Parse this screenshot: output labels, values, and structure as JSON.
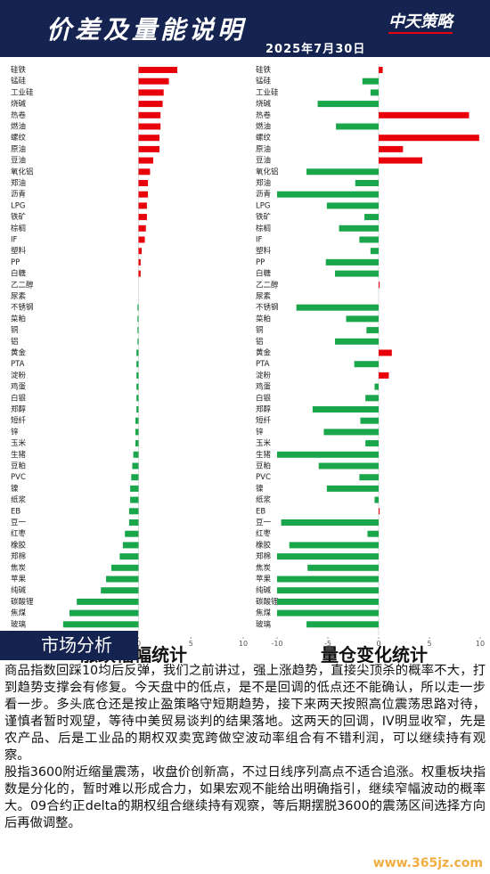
{
  "header": {
    "title": "价差及量能说明",
    "date": "2025年7月30日",
    "logo": "中天策略"
  },
  "chart_data": [
    {
      "type": "bar",
      "orientation": "horizontal",
      "title": "涨跌幅幅统计",
      "categories": [
        "硅铁",
        "锰硅",
        "工业硅",
        "烧碱",
        "热卷",
        "燃油",
        "螺纹",
        "原油",
        "豆油",
        "氧化铝",
        "郑油",
        "沥青",
        "LPG",
        "铁矿",
        "棕榈",
        "IF",
        "塑料",
        "PP",
        "白糖",
        "乙二醇",
        "尿素",
        "不锈钢",
        "菜粕",
        "铜",
        "铝",
        "黄金",
        "PTA",
        "淀粉",
        "鸡蛋",
        "白银",
        "郑醇",
        "短纤",
        "锌",
        "玉米",
        "生猪",
        "豆粕",
        "PVC",
        "镍",
        "纸浆",
        "EB",
        "豆一",
        "红枣",
        "橡胶",
        "郑棉",
        "焦炭",
        "苹果",
        "纯碱",
        "碳酸锂",
        "焦煤",
        "玻璃"
      ],
      "values": [
        3.7,
        2.9,
        2.4,
        2.3,
        2.1,
        2.1,
        2.0,
        2.0,
        1.4,
        1.1,
        0.9,
        0.9,
        0.8,
        0.8,
        0.7,
        0.6,
        0.3,
        0.2,
        0.2,
        0,
        0,
        -0.1,
        -0.1,
        -0.1,
        -0.1,
        -0.2,
        -0.2,
        -0.2,
        -0.2,
        -0.2,
        -0.2,
        -0.3,
        -0.3,
        -0.3,
        -0.5,
        -0.6,
        -0.7,
        -0.8,
        -0.8,
        -0.9,
        -0.9,
        -1.3,
        -1.5,
        -1.8,
        -2.6,
        -3.1,
        -3.6,
        -5.9,
        -6.6,
        -7.2
      ],
      "positive_color": "#e8000b",
      "negative_color": "#1aa64b",
      "xlim": [
        -10,
        10
      ],
      "xticks": [
        -10,
        -5,
        0,
        5,
        10
      ]
    },
    {
      "type": "bar",
      "orientation": "horizontal",
      "title": "量仓变化统计",
      "categories": [
        "硅铁",
        "锰硅",
        "工业硅",
        "烧碱",
        "热卷",
        "燃油",
        "螺纹",
        "原油",
        "豆油",
        "氧化铝",
        "郑油",
        "沥青",
        "LPG",
        "铁矿",
        "棕榈",
        "IF",
        "塑料",
        "PP",
        "白糖",
        "乙二醇",
        "尿素",
        "不锈钢",
        "菜粕",
        "铜",
        "铝",
        "黄金",
        "PTA",
        "淀粉",
        "鸡蛋",
        "白银",
        "郑醇",
        "短纤",
        "锌",
        "玉米",
        "生猪",
        "豆粕",
        "PVC",
        "镍",
        "纸浆",
        "EB",
        "豆一",
        "红枣",
        "橡胶",
        "郑棉",
        "焦炭",
        "苹果",
        "纯碱",
        "碳酸锂",
        "焦煤",
        "玻璃"
      ],
      "values": [
        0.4,
        -1.6,
        -0.8,
        -6.0,
        8.9,
        -4.2,
        9.9,
        2.4,
        4.3,
        -7.1,
        -2.3,
        -10,
        -5.1,
        -1.4,
        -3.9,
        -1.9,
        -0.8,
        -5.2,
        -4.3,
        0.1,
        0,
        -8.1,
        -3.2,
        -1.2,
        -4.3,
        1.3,
        -2.4,
        1.0,
        -0.4,
        -1.3,
        -6.5,
        -1.8,
        -5.4,
        -1.3,
        -10,
        -5.9,
        -1.9,
        -5.1,
        -0.4,
        0.1,
        -9.6,
        -1.1,
        -8.8,
        -10,
        -7.0,
        -10,
        -10,
        -10,
        -10,
        -7.1
      ],
      "positive_color": "#e8000b",
      "negative_color": "#1aa64b",
      "xlim": [
        -10,
        10
      ],
      "xticks": [
        -10,
        -5,
        0,
        5,
        10
      ]
    }
  ],
  "section": {
    "title": "市场分析",
    "paragraphs": [
      "商品指数回踩10均后反弹，我们之前讲过，强上涨趋势，直接尖顶杀的概率不大，打到趋势支撑会有修复。今天盘中的低点，是不是回调的低点还不能确认，所以走一步看一步。多头底仓还是按止盈策略守短期趋势，接下来两天按照高位震荡思路对待，谨慎者暂时观望，等待中美贸易谈判的结果落地。这两天的回调，IV明显收窄，先是农产品、后是工业品的期权双卖宽跨做空波动率组合有不错利润，可以继续持有观察。",
      "股指3600附近缩量震荡，收盘价创新高，不过日线序列高点不适合追涨。权重板块指数是分化的，暂时难以形成合力，如果宏观不能给出明确指引，继续窄幅波动的概率大。09合约正delta的期权组合继续持有观察，等后期摆脱3600的震荡区间选择方向后再做调整。"
    ]
  },
  "watermark": "www.365jz.com"
}
